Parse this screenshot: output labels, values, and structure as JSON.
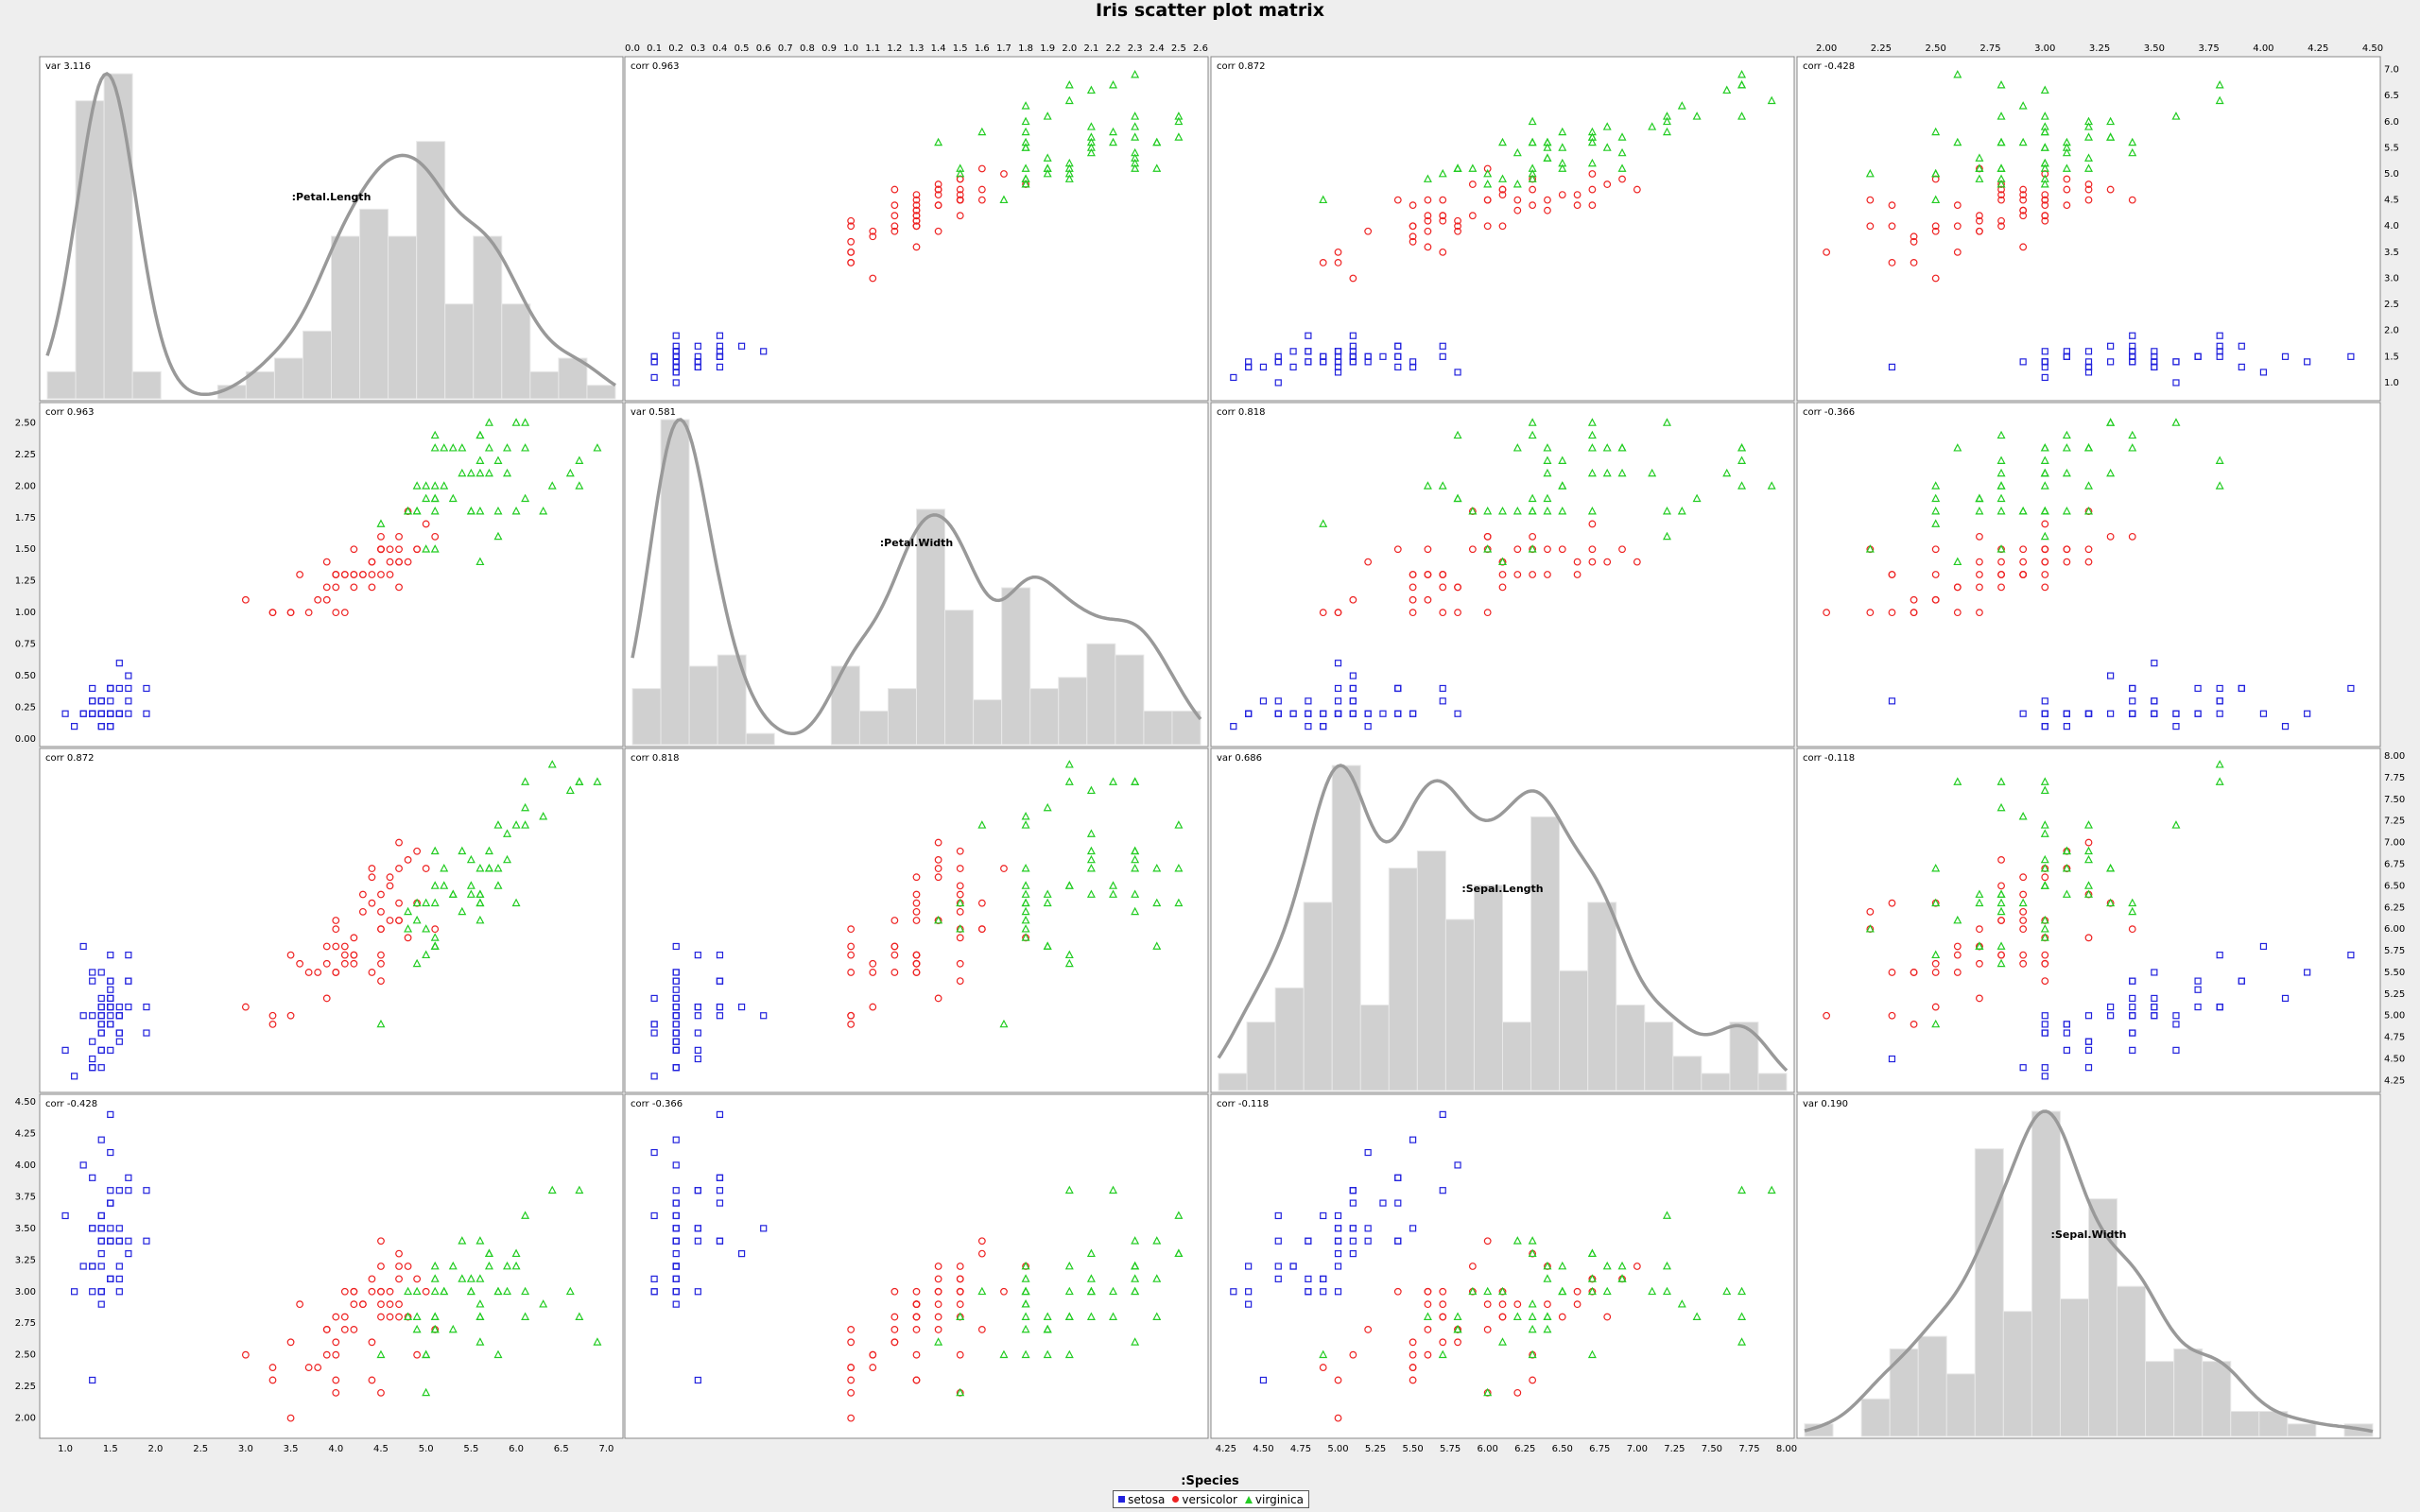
{
  "title": "Iris scatter plot matrix",
  "legend": {
    "title": ":Species",
    "items": [
      {
        "label": "setosa",
        "color": "#2222dd",
        "symbol": "square"
      },
      {
        "label": "versicolor",
        "color": "#ee2222",
        "symbol": "circle"
      },
      {
        "label": "virginica",
        "color": "#22cc22",
        "symbol": "triangle"
      }
    ]
  },
  "chart_data": {
    "type": "scatter",
    "variables": [
      {
        "name": ":Petal.Length",
        "stat": "var 3.116",
        "range": [
          0.8,
          7.1
        ],
        "ticks": [
          "1.0",
          "1.5",
          "2.0",
          "2.5",
          "3.0",
          "3.5",
          "4.0",
          "4.5",
          "5.0",
          "5.5",
          "6.0",
          "6.5",
          "7.0"
        ]
      },
      {
        "name": ":Petal.Width",
        "stat": "var 0.581",
        "range": [
          0.0,
          2.6
        ],
        "ticks": [
          "0.00",
          "0.25",
          "0.50",
          "0.75",
          "1.00",
          "1.25",
          "1.50",
          "1.75",
          "2.00",
          "2.25",
          "2.50"
        ],
        "top_ticks": [
          "0.0",
          "0.1",
          "0.2",
          "0.3",
          "0.4",
          "0.5",
          "0.6",
          "0.7",
          "0.8",
          "0.9",
          "1.0",
          "1.1",
          "1.2",
          "1.3",
          "1.4",
          "1.5",
          "1.6",
          "1.7",
          "1.8",
          "1.9",
          "2.0",
          "2.1",
          "2.2",
          "2.3",
          "2.4",
          "2.5",
          "2.6"
        ]
      },
      {
        "name": ":Sepal.Length",
        "stat": "var 0.686",
        "range": [
          4.2,
          8.0
        ],
        "ticks": [
          "4.25",
          "4.50",
          "4.75",
          "5.00",
          "5.25",
          "5.50",
          "5.75",
          "6.00",
          "6.25",
          "6.50",
          "6.75",
          "7.00",
          "7.25",
          "7.50",
          "7.75",
          "8.00"
        ]
      },
      {
        "name": ":Sepal.Width",
        "stat": "var 0.190",
        "range": [
          1.9,
          4.5
        ],
        "ticks": [
          "2.00",
          "2.25",
          "2.50",
          "2.75",
          "3.00",
          "3.25",
          "3.50",
          "3.75",
          "4.00",
          "4.25",
          "4.50"
        ]
      }
    ],
    "correlations": [
      [
        "var 3.116",
        "corr 0.963",
        "corr 0.872",
        "corr -0.428"
      ],
      [
        "corr 0.963",
        "var 0.581",
        "corr 0.818",
        "corr -0.366"
      ],
      [
        "corr 0.872",
        "corr 0.818",
        "var 0.686",
        "corr -0.118"
      ],
      [
        "corr -0.428",
        "corr -0.366",
        "corr -0.118",
        "var 0.190"
      ]
    ],
    "species": [
      "setosa",
      "versicolor",
      "virginica"
    ],
    "data_columns": [
      "Petal.Length",
      "Petal.Width",
      "Sepal.Length",
      "Sepal.Width"
    ],
    "setosa": [
      [
        1.4,
        0.2,
        5.1,
        3.5
      ],
      [
        1.4,
        0.2,
        4.9,
        3.0
      ],
      [
        1.3,
        0.2,
        4.7,
        3.2
      ],
      [
        1.5,
        0.2,
        4.6,
        3.1
      ],
      [
        1.4,
        0.2,
        5.0,
        3.6
      ],
      [
        1.7,
        0.4,
        5.4,
        3.9
      ],
      [
        1.4,
        0.3,
        4.6,
        3.4
      ],
      [
        1.5,
        0.2,
        5.0,
        3.4
      ],
      [
        1.4,
        0.2,
        4.4,
        2.9
      ],
      [
        1.5,
        0.1,
        4.9,
        3.1
      ],
      [
        1.5,
        0.2,
        5.4,
        3.7
      ],
      [
        1.6,
        0.2,
        4.8,
        3.4
      ],
      [
        1.4,
        0.1,
        4.8,
        3.0
      ],
      [
        1.1,
        0.1,
        4.3,
        3.0
      ],
      [
        1.2,
        0.2,
        5.8,
        4.0
      ],
      [
        1.5,
        0.4,
        5.7,
        4.4
      ],
      [
        1.3,
        0.4,
        5.4,
        3.9
      ],
      [
        1.4,
        0.3,
        5.1,
        3.5
      ],
      [
        1.7,
        0.3,
        5.7,
        3.8
      ],
      [
        1.5,
        0.3,
        5.1,
        3.8
      ],
      [
        1.7,
        0.2,
        5.4,
        3.4
      ],
      [
        1.5,
        0.4,
        5.1,
        3.7
      ],
      [
        1.0,
        0.2,
        4.6,
        3.6
      ],
      [
        1.7,
        0.5,
        5.1,
        3.3
      ],
      [
        1.9,
        0.2,
        4.8,
        3.4
      ],
      [
        1.6,
        0.2,
        5.0,
        3.0
      ],
      [
        1.6,
        0.4,
        5.0,
        3.4
      ],
      [
        1.5,
        0.2,
        5.2,
        3.5
      ],
      [
        1.4,
        0.2,
        5.2,
        3.4
      ],
      [
        1.6,
        0.2,
        4.7,
        3.2
      ],
      [
        1.6,
        0.2,
        4.8,
        3.1
      ],
      [
        1.5,
        0.4,
        5.4,
        3.4
      ],
      [
        1.5,
        0.1,
        5.2,
        4.1
      ],
      [
        1.4,
        0.2,
        5.5,
        4.2
      ],
      [
        1.5,
        0.2,
        4.9,
        3.1
      ],
      [
        1.2,
        0.2,
        5.0,
        3.2
      ],
      [
        1.3,
        0.2,
        5.5,
        3.5
      ],
      [
        1.4,
        0.1,
        4.9,
        3.6
      ],
      [
        1.3,
        0.2,
        4.4,
        3.0
      ],
      [
        1.5,
        0.2,
        5.1,
        3.4
      ],
      [
        1.3,
        0.3,
        5.0,
        3.5
      ],
      [
        1.3,
        0.3,
        4.5,
        2.3
      ],
      [
        1.3,
        0.2,
        4.4,
        3.2
      ],
      [
        1.6,
        0.6,
        5.0,
        3.5
      ],
      [
        1.9,
        0.4,
        5.1,
        3.8
      ],
      [
        1.4,
        0.3,
        4.8,
        3.0
      ],
      [
        1.6,
        0.2,
        5.1,
        3.8
      ],
      [
        1.4,
        0.2,
        4.6,
        3.2
      ],
      [
        1.5,
        0.2,
        5.3,
        3.7
      ],
      [
        1.4,
        0.2,
        5.0,
        3.3
      ]
    ],
    "versicolor": [
      [
        4.7,
        1.4,
        7.0,
        3.2
      ],
      [
        4.5,
        1.5,
        6.4,
        3.2
      ],
      [
        4.9,
        1.5,
        6.9,
        3.1
      ],
      [
        4.0,
        1.3,
        5.5,
        2.3
      ],
      [
        4.6,
        1.5,
        6.5,
        2.8
      ],
      [
        4.5,
        1.3,
        5.7,
        2.8
      ],
      [
        4.7,
        1.6,
        6.3,
        3.3
      ],
      [
        3.3,
        1.0,
        4.9,
        2.4
      ],
      [
        4.6,
        1.3,
        6.6,
        2.9
      ],
      [
        3.9,
        1.4,
        5.2,
        2.7
      ],
      [
        3.5,
        1.0,
        5.0,
        2.0
      ],
      [
        4.2,
        1.5,
        5.9,
        3.0
      ],
      [
        4.0,
        1.0,
        6.0,
        2.2
      ],
      [
        4.7,
        1.4,
        6.1,
        2.9
      ],
      [
        3.6,
        1.3,
        5.6,
        2.9
      ],
      [
        4.4,
        1.4,
        6.7,
        3.1
      ],
      [
        4.5,
        1.5,
        5.6,
        3.0
      ],
      [
        4.1,
        1.0,
        5.8,
        2.7
      ],
      [
        4.5,
        1.5,
        6.2,
        2.2
      ],
      [
        3.9,
        1.1,
        5.6,
        2.5
      ],
      [
        4.8,
        1.8,
        5.9,
        3.2
      ],
      [
        4.0,
        1.3,
        6.1,
        2.8
      ],
      [
        4.9,
        1.5,
        6.3,
        2.5
      ],
      [
        4.7,
        1.2,
        6.1,
        2.8
      ],
      [
        4.3,
        1.3,
        6.4,
        2.9
      ],
      [
        4.4,
        1.4,
        6.6,
        3.0
      ],
      [
        4.8,
        1.4,
        6.8,
        2.8
      ],
      [
        5.0,
        1.7,
        6.7,
        3.0
      ],
      [
        4.5,
        1.5,
        6.0,
        2.9
      ],
      [
        3.5,
        1.0,
        5.7,
        2.6
      ],
      [
        3.8,
        1.1,
        5.5,
        2.4
      ],
      [
        3.7,
        1.0,
        5.5,
        2.4
      ],
      [
        3.9,
        1.2,
        5.8,
        2.7
      ],
      [
        5.1,
        1.6,
        6.0,
        2.7
      ],
      [
        4.5,
        1.5,
        5.4,
        3.0
      ],
      [
        4.5,
        1.6,
        6.0,
        3.4
      ],
      [
        4.7,
        1.5,
        6.7,
        3.1
      ],
      [
        4.4,
        1.3,
        6.3,
        2.3
      ],
      [
        4.1,
        1.3,
        5.6,
        3.0
      ],
      [
        4.0,
        1.3,
        5.5,
        2.5
      ],
      [
        4.4,
        1.2,
        5.5,
        2.6
      ],
      [
        4.6,
        1.4,
        6.1,
        3.0
      ],
      [
        4.0,
        1.2,
        5.8,
        2.6
      ],
      [
        3.3,
        1.0,
        5.0,
        2.3
      ],
      [
        4.2,
        1.3,
        5.6,
        2.7
      ],
      [
        4.2,
        1.2,
        5.7,
        3.0
      ],
      [
        4.2,
        1.3,
        5.7,
        2.9
      ],
      [
        4.3,
        1.3,
        6.2,
        2.9
      ],
      [
        3.0,
        1.1,
        5.1,
        2.5
      ],
      [
        4.1,
        1.3,
        5.7,
        2.8
      ]
    ],
    "virginica": [
      [
        6.0,
        2.5,
        6.3,
        3.3
      ],
      [
        5.1,
        1.9,
        5.8,
        2.7
      ],
      [
        5.9,
        2.1,
        7.1,
        3.0
      ],
      [
        5.6,
        1.8,
        6.3,
        2.9
      ],
      [
        5.8,
        2.2,
        6.5,
        3.0
      ],
      [
        6.6,
        2.1,
        7.6,
        3.0
      ],
      [
        4.5,
        1.7,
        4.9,
        2.5
      ],
      [
        6.3,
        1.8,
        7.3,
        2.9
      ],
      [
        5.8,
        1.8,
        6.7,
        2.5
      ],
      [
        6.1,
        2.5,
        7.2,
        3.6
      ],
      [
        5.1,
        2.0,
        6.5,
        3.2
      ],
      [
        5.3,
        1.9,
        6.4,
        2.7
      ],
      [
        5.5,
        2.1,
        6.8,
        3.0
      ],
      [
        5.0,
        2.0,
        5.7,
        2.5
      ],
      [
        5.1,
        2.4,
        5.8,
        2.8
      ],
      [
        5.3,
        2.3,
        6.4,
        3.2
      ],
      [
        5.5,
        1.8,
        6.5,
        3.0
      ],
      [
        6.7,
        2.2,
        7.7,
        3.8
      ],
      [
        6.9,
        2.3,
        7.7,
        2.6
      ],
      [
        5.0,
        1.5,
        6.0,
        2.2
      ],
      [
        5.7,
        2.3,
        6.9,
        3.2
      ],
      [
        4.9,
        2.0,
        5.6,
        2.8
      ],
      [
        6.7,
        2.0,
        7.7,
        2.8
      ],
      [
        4.9,
        1.8,
        6.3,
        2.7
      ],
      [
        5.7,
        2.1,
        6.7,
        3.3
      ],
      [
        6.0,
        1.8,
        7.2,
        3.2
      ],
      [
        4.8,
        1.8,
        6.2,
        2.8
      ],
      [
        4.9,
        1.8,
        6.1,
        3.0
      ],
      [
        5.6,
        2.1,
        6.4,
        2.8
      ],
      [
        5.8,
        1.6,
        7.2,
        3.0
      ],
      [
        6.1,
        1.9,
        7.4,
        2.8
      ],
      [
        6.4,
        2.0,
        7.9,
        3.8
      ],
      [
        5.6,
        2.2,
        6.4,
        2.8
      ],
      [
        5.1,
        1.5,
        6.3,
        2.8
      ],
      [
        5.6,
        1.4,
        6.1,
        2.6
      ],
      [
        6.1,
        2.3,
        7.7,
        3.0
      ],
      [
        5.6,
        2.4,
        6.3,
        3.4
      ],
      [
        5.5,
        1.8,
        6.4,
        3.1
      ],
      [
        4.8,
        1.8,
        6.0,
        3.0
      ],
      [
        5.4,
        2.1,
        6.9,
        3.1
      ],
      [
        5.6,
        2.4,
        6.7,
        3.1
      ],
      [
        5.1,
        2.3,
        6.9,
        3.1
      ],
      [
        5.1,
        1.9,
        5.8,
        2.7
      ],
      [
        5.9,
        2.3,
        6.8,
        3.2
      ],
      [
        5.7,
        2.5,
        6.7,
        3.3
      ],
      [
        5.2,
        2.3,
        6.7,
        3.0
      ],
      [
        5.0,
        1.9,
        6.3,
        2.5
      ],
      [
        5.2,
        2.0,
        6.5,
        3.0
      ],
      [
        5.4,
        2.3,
        6.2,
        3.4
      ],
      [
        5.1,
        1.8,
        5.9,
        3.0
      ]
    ]
  }
}
